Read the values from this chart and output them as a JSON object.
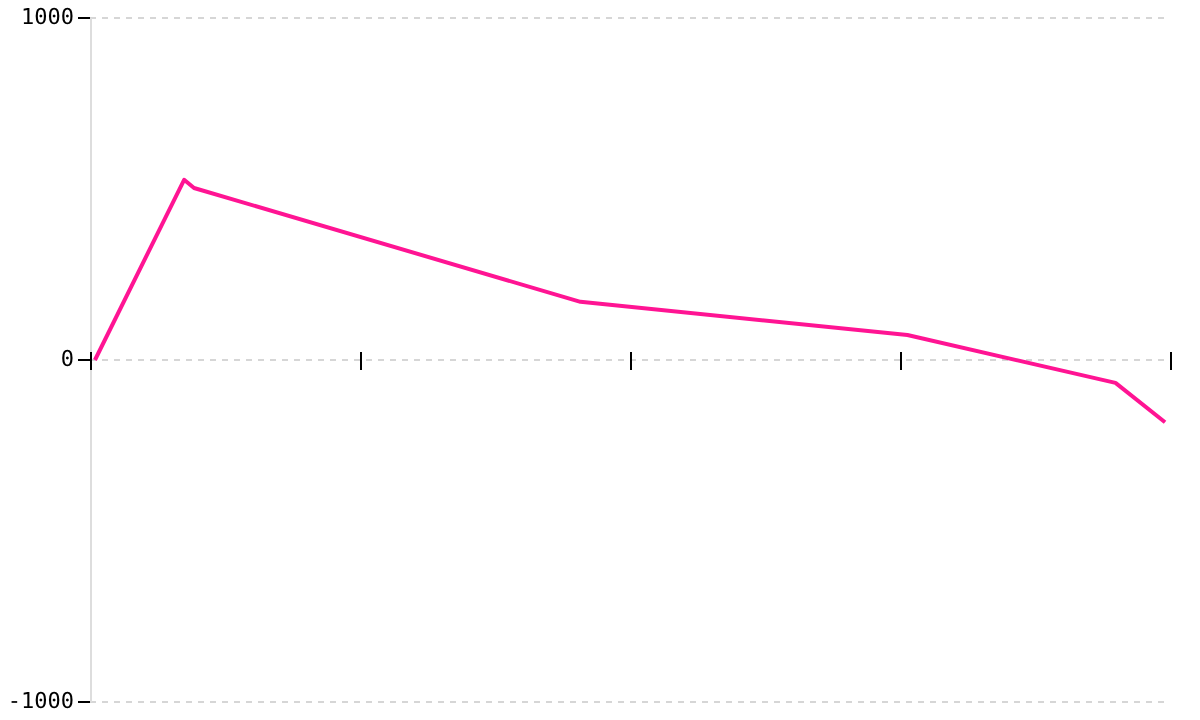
{
  "chart_data": {
    "type": "line",
    "categories": [
      null,
      null,
      null,
      null,
      null,
      null,
      null,
      null,
      null,
      null,
      null,
      null,
      null,
      null,
      null,
      null,
      null,
      null,
      null,
      null,
      null,
      null,
      null,
      null,
      null,
      null,
      null,
      null,
      null,
      null,
      null,
      null,
      null,
      null,
      null,
      null,
      null,
      null,
      null,
      null,
      null,
      null,
      null,
      null,
      null,
      null,
      null,
      null,
      null,
      null,
      null,
      null,
      null,
      null,
      null,
      null,
      null,
      null,
      null,
      null,
      null,
      null,
      null,
      null,
      null,
      null,
      null,
      null,
      null,
      null,
      null,
      null,
      null,
      null,
      null,
      null,
      null,
      null,
      null,
      null,
      null,
      null,
      null,
      null,
      null,
      null,
      null,
      null,
      null,
      null,
      null,
      null,
      null,
      null,
      null,
      null,
      null,
      null,
      null,
      null,
      null,
      null,
      null,
      null,
      null,
      null,
      null,
      null,
      null
    ],
    "series": [
      {
        "color": "#ff1493",
        "values": [
          0,
          null,
          null,
          null,
          null,
          null,
          null,
          null,
          null,
          527,
          503,
          null,
          null,
          null,
          null,
          null,
          null,
          null,
          null,
          null,
          null,
          null,
          null,
          null,
          null,
          null,
          null,
          null,
          null,
          null,
          null,
          null,
          null,
          null,
          null,
          null,
          null,
          null,
          null,
          null,
          null,
          null,
          null,
          null,
          null,
          null,
          null,
          null,
          null,
          170,
          null,
          null,
          null,
          null,
          null,
          null,
          null,
          null,
          null,
          null,
          null,
          null,
          null,
          null,
          null,
          null,
          null,
          null,
          null,
          null,
          null,
          null,
          null,
          null,
          null,
          null,
          null,
          null,
          null,
          null,
          null,
          null,
          73,
          null,
          null,
          null,
          null,
          null,
          null,
          null,
          null,
          null,
          null,
          null,
          null,
          null,
          null,
          null,
          null,
          null,
          null,
          null,
          null,
          -67,
          null,
          null,
          null,
          null,
          -182
        ]
      }
    ],
    "ylim": [
      -1000,
      1000
    ],
    "yticks": [
      -1000,
      0,
      1000
    ],
    "grid": "y",
    "tick_labels": "y",
    "marker": "none",
    "line_style": "solid",
    "legend": false
  }
}
